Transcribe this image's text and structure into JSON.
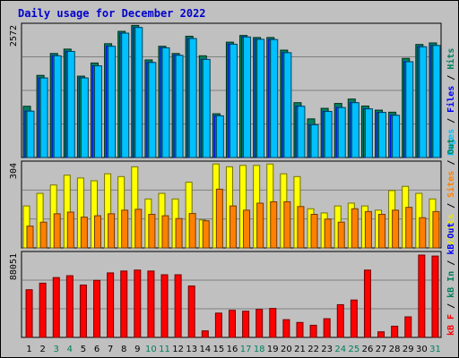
{
  "chart_data": {
    "type": "bar",
    "title": "Daily usage for December 2022",
    "categories": [
      "1",
      "2",
      "3",
      "4",
      "5",
      "6",
      "7",
      "8",
      "9",
      "10",
      "11",
      "12",
      "13",
      "14",
      "15",
      "16",
      "17",
      "18",
      "19",
      "20",
      "21",
      "22",
      "23",
      "24",
      "25",
      "26",
      "27",
      "28",
      "29",
      "30",
      "31"
    ],
    "weekend_days": [
      "3",
      "4",
      "10",
      "11",
      "17",
      "18",
      "24",
      "25",
      "31"
    ],
    "colors": {
      "background": "#c0c0c0",
      "title": "#0000cc",
      "weekday_label": "#000000",
      "weekend_label": "#00805c",
      "hits": "#00805c",
      "files": "#0000ff",
      "pages": "#00c0ff",
      "visits": "#ffff00",
      "sites": "#ff8000",
      "kbin": "#00805c",
      "kbout": "#0000ff",
      "kbf": "#ff0000"
    },
    "panels": [
      {
        "name": "top",
        "max_label": "2572",
        "max": 2572,
        "right_label": [
          {
            "text": "Pages",
            "color": "#00c0ff"
          },
          {
            "text": " / ",
            "color": "#000000"
          },
          {
            "text": "Files",
            "color": "#0000ff"
          },
          {
            "text": " / ",
            "color": "#000000"
          },
          {
            "text": "Hits",
            "color": "#00805c"
          }
        ],
        "series": [
          {
            "name": "Hits",
            "color": "#00805c",
            "values": [
              995,
              1595,
              2020,
              2105,
              1580,
              1835,
              2210,
              2450,
              2565,
              1895,
              2160,
              2020,
              2355,
              1975,
              850,
              2240,
              2370,
              2330,
              2330,
              2085,
              1065,
              750,
              955,
              1050,
              1135,
              1000,
              920,
              880,
              1925,
              2195,
              2225
            ]
          },
          {
            "name": "Files",
            "color": "#0000ff",
            "values": [
              900,
              1545,
              1975,
              2060,
              1545,
              1780,
              2160,
              2415,
              2525,
              1845,
              2130,
              1985,
              2310,
              1905,
              810,
              2200,
              2340,
              2295,
              2290,
              2035,
              995,
              635,
              895,
              970,
              1065,
              945,
              875,
              820,
              1860,
              2150,
              2175
            ]
          },
          {
            "name": "Pages",
            "color": "#00c0ff",
            "values": [
              900,
              1545,
              1975,
              2060,
              1545,
              1780,
              2160,
              2415,
              2525,
              1845,
              2130,
              1985,
              2310,
              1905,
              810,
              2200,
              2340,
              2295,
              2290,
              2035,
              995,
              635,
              895,
              970,
              1065,
              945,
              875,
              820,
              1860,
              2150,
              2175
            ]
          }
        ]
      },
      {
        "name": "middle",
        "max_label": "304",
        "max": 304,
        "right_label": [
          {
            "text": "Visits",
            "color": "#e8e800"
          },
          {
            "text": " / ",
            "color": "#000000"
          },
          {
            "text": "Sites",
            "color": "#ff8000"
          },
          {
            "text": " / ",
            "color": "#000000"
          },
          {
            "text": "Out",
            "color": "#00805c"
          }
        ],
        "series": [
          {
            "name": "Visits",
            "color": "#ffff00",
            "values": [
              150,
              195,
              225,
              260,
              250,
              240,
              265,
              255,
              290,
              175,
              195,
              175,
              235,
              100,
              300,
              290,
              295,
              295,
              300,
              265,
              255,
              140,
              125,
              150,
              160,
              150,
              135,
              205,
              220,
              195,
              175
            ]
          },
          {
            "name": "Sites",
            "color": "#ff8000",
            "values": [
              78,
              92,
              122,
              128,
              110,
              115,
              122,
              135,
              138,
              120,
              115,
              105,
              123,
              97,
              210,
              150,
              135,
              160,
              165,
              165,
              148,
              120,
              103,
              92,
              140,
              130,
              120,
              135,
              145,
              108,
              130
            ]
          }
        ]
      },
      {
        "name": "bottom",
        "max_label": "88051",
        "max": 88051,
        "right_label": [
          {
            "text": "kB F",
            "color": "#ff0000"
          },
          {
            "text": " / ",
            "color": "#000000"
          },
          {
            "text": "kB In",
            "color": "#00805c"
          },
          {
            "text": " / ",
            "color": "#000000"
          },
          {
            "text": "kB Out",
            "color": "#0000ff"
          }
        ],
        "series": [
          {
            "name": "kB F",
            "color": "#ff0000",
            "values": [
              51000,
              58000,
              64000,
              66000,
              56000,
              61000,
              69000,
              71000,
              72000,
              71000,
              67000,
              67000,
              55000,
              7000,
              26000,
              29000,
              28000,
              30000,
              31000,
              19000,
              16000,
              13000,
              20000,
              35000,
              40000,
              72000,
              6000,
              12000,
              22000,
              88051,
              87000
            ]
          }
        ]
      }
    ]
  }
}
